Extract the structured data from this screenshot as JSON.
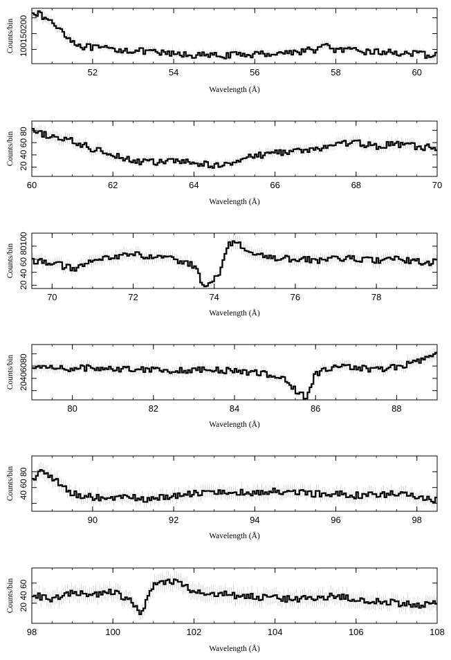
{
  "chart_data": [
    {
      "type": "line",
      "xlabel": "Wavelength (Å)",
      "ylabel": "Counts/bin",
      "xlim": [
        50.5,
        60.5
      ],
      "ylim": [
        55,
        230
      ],
      "xticks": [
        52,
        54,
        56,
        58,
        60
      ],
      "yticks": [
        100,
        150,
        200
      ],
      "ytick_text": "100150200",
      "grid": false,
      "series": [
        {
          "x": [
            50.5,
            50.75,
            51.0,
            51.25,
            51.5,
            51.75,
            52.0,
            52.5,
            53.0,
            53.5,
            54.0,
            54.5,
            55.0,
            55.5,
            56.0,
            56.5,
            57.0,
            57.5,
            57.8,
            58.0,
            58.5,
            59.0,
            59.5,
            60.0,
            60.5
          ],
          "y": [
            225,
            205,
            185,
            160,
            125,
            110,
            105,
            100,
            97,
            90,
            85,
            82,
            80,
            82,
            85,
            88,
            92,
            100,
            112,
            98,
            95,
            92,
            90,
            85,
            80
          ]
        }
      ]
    },
    {
      "type": "line",
      "xlabel": "Wavelength (Å)",
      "ylabel": "Counts/bin",
      "xlim": [
        60,
        70
      ],
      "ylim": [
        5,
        95
      ],
      "xticks": [
        60,
        62,
        64,
        66,
        68,
        70
      ],
      "yticks": [
        20,
        40,
        60,
        80
      ],
      "ytick_text": "20 40 60 80",
      "grid": false,
      "series": [
        {
          "x": [
            60.0,
            60.5,
            61.0,
            61.5,
            62.0,
            62.5,
            63.0,
            63.5,
            64.0,
            64.5,
            65.0,
            65.5,
            66.0,
            66.5,
            67.0,
            67.5,
            68.0,
            68.5,
            69.0,
            69.5,
            70.0
          ],
          "y": [
            78,
            70,
            62,
            50,
            42,
            30,
            28,
            30,
            27,
            22,
            30,
            38,
            44,
            46,
            48,
            58,
            60,
            54,
            58,
            53,
            52
          ]
        }
      ]
    },
    {
      "type": "line",
      "xlabel": "Wavelength (Å)",
      "ylabel": "Counts/bin",
      "xlim": [
        69.5,
        79.5
      ],
      "ylim": [
        15,
        100
      ],
      "xticks": [
        70,
        72,
        74,
        76,
        78
      ],
      "yticks": [
        20,
        40,
        60,
        80,
        100
      ],
      "ytick_text": "20 40 60 80100",
      "grid": false,
      "series": [
        {
          "x": [
            69.5,
            70.0,
            70.5,
            71.0,
            71.5,
            72.0,
            72.5,
            73.0,
            73.5,
            73.7,
            73.9,
            74.1,
            74.3,
            74.5,
            74.7,
            75.0,
            75.5,
            76.0,
            76.5,
            77.0,
            77.5,
            78.0,
            78.5,
            79.0,
            79.5
          ],
          "y": [
            58,
            55,
            45,
            55,
            65,
            68,
            62,
            60,
            50,
            25,
            20,
            35,
            75,
            92,
            78,
            65,
            62,
            60,
            58,
            62,
            60,
            58,
            60,
            56,
            55
          ]
        }
      ]
    },
    {
      "type": "line",
      "xlabel": "Wavelength (Å)",
      "ylabel": "Counts/bin",
      "xlim": [
        79,
        89
      ],
      "ylim": [
        5,
        95
      ],
      "xticks": [
        80,
        82,
        84,
        86,
        88
      ],
      "yticks": [
        20,
        40,
        60,
        80
      ],
      "ytick_text": "20406080",
      "grid": false,
      "series": [
        {
          "x": [
            79.0,
            79.5,
            80.0,
            80.5,
            81.0,
            81.5,
            82.0,
            82.5,
            83.0,
            83.5,
            84.0,
            84.5,
            85.0,
            85.3,
            85.6,
            85.8,
            86.0,
            86.5,
            87.0,
            87.5,
            88.0,
            88.5,
            89.0
          ],
          "y": [
            55,
            60,
            55,
            58,
            56,
            55,
            56,
            52,
            54,
            53,
            52,
            50,
            45,
            35,
            15,
            10,
            48,
            58,
            58,
            55,
            58,
            68,
            78
          ]
        }
      ]
    },
    {
      "type": "line",
      "xlabel": "Wavelength (Å)",
      "ylabel": "Counts/bin",
      "xlim": [
        88.5,
        98.5
      ],
      "ylim": [
        30,
        100
      ],
      "xticks": [
        90,
        92,
        94,
        96,
        98
      ],
      "yticks": [
        40,
        60,
        80
      ],
      "ytick_text": "40 60 80",
      "grid": false,
      "series": [
        {
          "x": [
            88.5,
            88.75,
            89.0,
            89.5,
            90.0,
            90.5,
            91.0,
            91.5,
            92.0,
            92.5,
            93.0,
            93.5,
            94.0,
            94.5,
            95.0,
            95.5,
            96.0,
            96.5,
            97.0,
            97.5,
            98.0,
            98.5
          ],
          "y": [
            70,
            82,
            72,
            52,
            48,
            46,
            47,
            45,
            50,
            52,
            56,
            54,
            52,
            55,
            54,
            52,
            53,
            50,
            50,
            52,
            48,
            45
          ]
        }
      ]
    },
    {
      "type": "line",
      "xlabel": "Wavelength (Å)",
      "ylabel": "Counts/bin",
      "xlim": [
        98,
        108
      ],
      "ylim": [
        20,
        75
      ],
      "xticks": [
        98,
        100,
        102,
        104,
        106,
        108
      ],
      "yticks": [
        20,
        40,
        60
      ],
      "ytick_text": "20 40 60",
      "grid": false,
      "series": [
        {
          "x": [
            98.0,
            98.5,
            99.0,
            99.5,
            100.0,
            100.5,
            100.7,
            101.0,
            101.5,
            102.0,
            102.5,
            103.0,
            103.5,
            104.0,
            104.5,
            105.0,
            105.5,
            106.0,
            106.5,
            107.0,
            107.5,
            108.0
          ],
          "y": [
            48,
            44,
            50,
            48,
            52,
            40,
            28,
            58,
            62,
            52,
            50,
            48,
            46,
            45,
            44,
            46,
            47,
            44,
            42,
            40,
            38,
            40
          ]
        }
      ]
    }
  ]
}
